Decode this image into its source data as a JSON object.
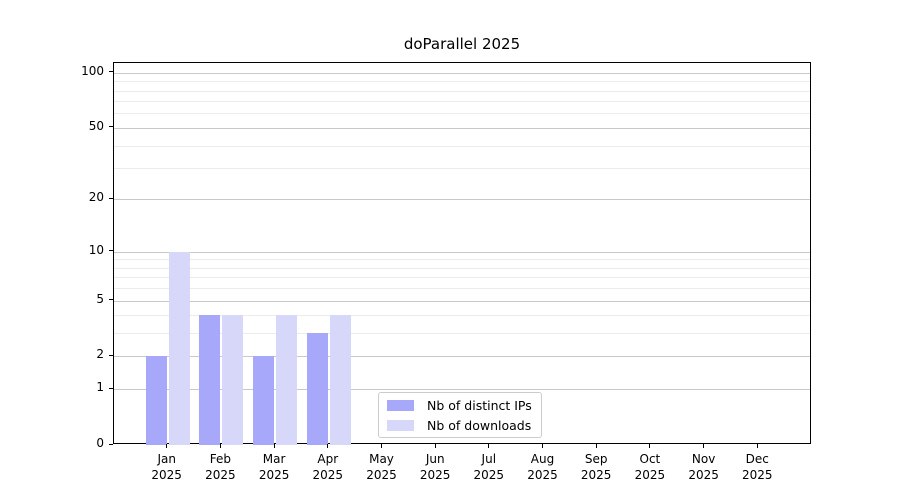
{
  "chart_data": {
    "type": "bar",
    "title": "doParallel 2025",
    "months": [
      "Jan",
      "Feb",
      "Mar",
      "Apr",
      "May",
      "Jun",
      "Jul",
      "Aug",
      "Sep",
      "Oct",
      "Nov",
      "Dec"
    ],
    "year": "2025",
    "categories": [
      "Jan 2025",
      "Feb 2025",
      "Mar 2025",
      "Apr 2025",
      "May 2025",
      "Jun 2025",
      "Jul 2025",
      "Aug 2025",
      "Sep 2025",
      "Oct 2025",
      "Nov 2025",
      "Dec 2025"
    ],
    "series": [
      {
        "name": "Nb of distinct IPs",
        "color": "#a8a8fa",
        "values": [
          2,
          4,
          2,
          3,
          0,
          0,
          0,
          0,
          0,
          0,
          0,
          0
        ]
      },
      {
        "name": "Nb of downloads",
        "color": "#d7d7fa",
        "values": [
          10,
          4,
          4,
          4,
          0,
          0,
          0,
          0,
          0,
          0,
          0,
          0
        ]
      }
    ],
    "yscale": "log1p",
    "ylim": [
      0,
      113
    ],
    "y_tick_labels": [
      0,
      1,
      2,
      5,
      10,
      20,
      50,
      100
    ],
    "y_minor_gridlines": [
      3,
      4,
      6,
      7,
      8,
      9,
      30,
      40,
      60,
      70,
      80,
      90
    ],
    "grid": true,
    "legend_position": "lower-center-inside",
    "axis": {
      "spine_color": "#000000",
      "grid_major_color": "#c9c9c9",
      "grid_minor_color": "#ececec",
      "background": "#ffffff"
    }
  }
}
